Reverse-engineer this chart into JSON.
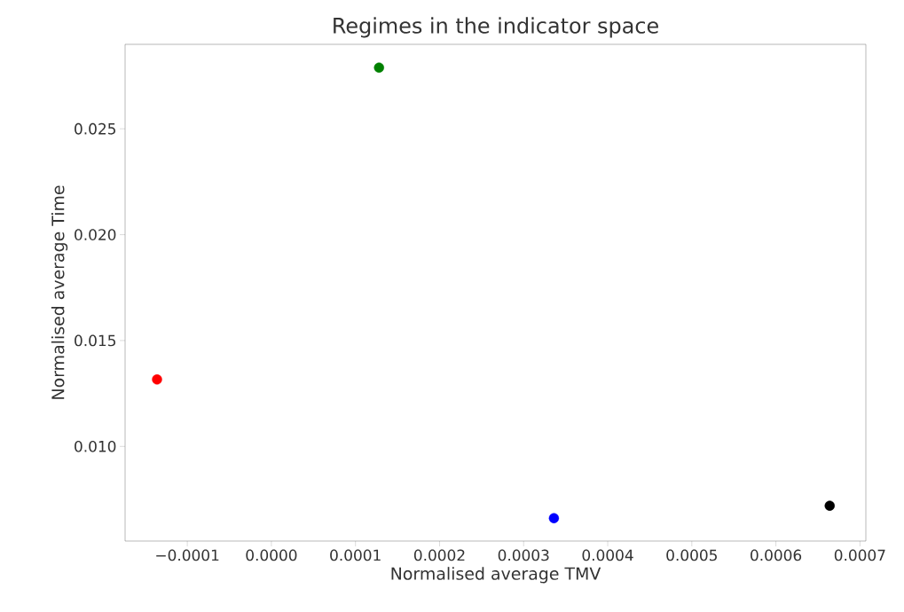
{
  "chart_data": {
    "type": "scatter",
    "title": "Regimes in the indicator space",
    "xlabel": "Normalised average TMV",
    "ylabel": "Normalised average Time",
    "x": [
      -0.000136,
      0.000128,
      0.000336,
      0.000664
    ],
    "values": [
      0.01316,
      0.02789,
      0.00661,
      0.0072
    ],
    "colors": [
      "#ff0000",
      "#008000",
      "#0000ff",
      "#000000"
    ],
    "xlim": [
      -0.000174,
      0.000707
    ],
    "ylim": [
      0.00553,
      0.02899
    ],
    "xticks": [
      {
        "value": -0.0001,
        "label": "−0.0001"
      },
      {
        "value": 0,
        "label": "0.0000"
      },
      {
        "value": 0.0001,
        "label": "0.0001"
      },
      {
        "value": 0.0002,
        "label": "0.0002"
      },
      {
        "value": 0.0003,
        "label": "0.0003"
      },
      {
        "value": 0.0004,
        "label": "0.0004"
      },
      {
        "value": 0.0005,
        "label": "0.0005"
      },
      {
        "value": 0.0006,
        "label": "0.0006"
      },
      {
        "value": 0.0007,
        "label": "0.0007"
      }
    ],
    "yticks": [
      {
        "value": 0.01,
        "label": "0.010"
      },
      {
        "value": 0.015,
        "label": "0.015"
      },
      {
        "value": 0.02,
        "label": "0.020"
      },
      {
        "value": 0.025,
        "label": "0.025"
      }
    ]
  }
}
